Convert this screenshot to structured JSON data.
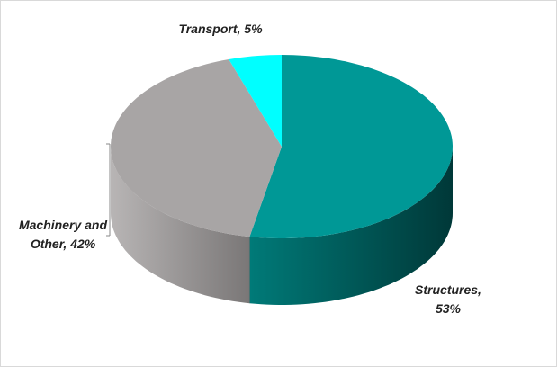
{
  "chart_data": {
    "type": "pie",
    "style": "3d",
    "categories": [
      "Structures",
      "Machinery and Other",
      "Transport"
    ],
    "values": [
      53,
      42,
      5
    ],
    "value_labels": [
      "Structures, 53%",
      "Machinery and Other, 42%",
      "Transport, 5%"
    ],
    "colors": [
      "#009896",
      "#a8a5a5",
      "#00ffff"
    ],
    "side_colors": [
      "#006464",
      "#8a8787",
      "#00c8c8"
    ]
  }
}
